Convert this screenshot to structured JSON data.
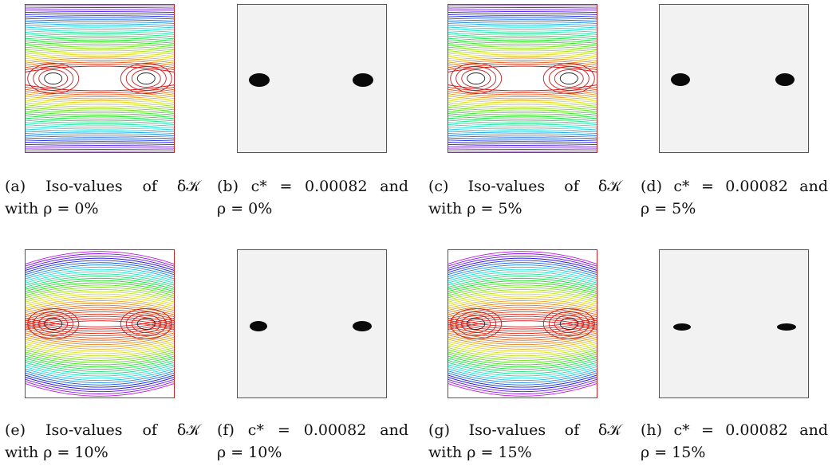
{
  "figure": {
    "panels": [
      {
        "id": "a",
        "kind": "iso",
        "line1": "(a) Iso-values of δ𝒦",
        "line2": "with ρ = 0%"
      },
      {
        "id": "b",
        "kind": "blob",
        "line1": "(b) c* = 0.00082 and",
        "line2": "ρ = 0%"
      },
      {
        "id": "c",
        "kind": "iso",
        "line1": "(c) Iso-values of δ𝒦",
        "line2": "with ρ = 5%"
      },
      {
        "id": "d",
        "kind": "blob",
        "line1": "(d) c* = 0.00082 and",
        "line2": "ρ = 5%"
      },
      {
        "id": "e",
        "kind": "iso",
        "line1": "(e) Iso-values of δ𝒦",
        "line2": "with ρ = 10%"
      },
      {
        "id": "f",
        "kind": "blob",
        "line1": "(f) c* = 0.00082 and",
        "line2": "ρ = 10%"
      },
      {
        "id": "g",
        "kind": "iso",
        "line1": "(g) Iso-values of δ𝒦",
        "line2": "with ρ = 15%"
      },
      {
        "id": "h",
        "kind": "blob",
        "line1": "(h) c* = 0.00082 and",
        "line2": "ρ = 15%"
      }
    ]
  }
}
